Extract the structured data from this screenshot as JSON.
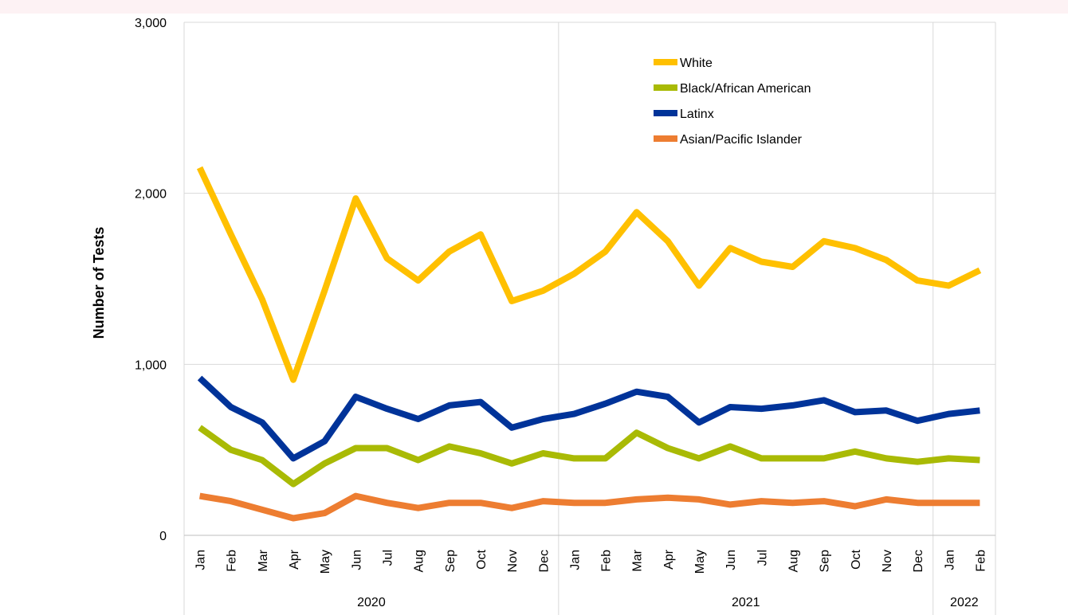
{
  "chart_data": {
    "type": "line",
    "title": "",
    "xlabel": "",
    "ylabel": "Number of Tests",
    "ylim": [
      0,
      3000
    ],
    "yticks": [
      0,
      1000,
      2000,
      3000
    ],
    "ytick_labels": [
      "0",
      "1,000",
      "2,000",
      "3,000"
    ],
    "grid": true,
    "legend_position": "top-right",
    "categories": [
      "Jan",
      "Feb",
      "Mar",
      "Apr",
      "May",
      "Jun",
      "Jul",
      "Aug",
      "Sep",
      "Oct",
      "Nov",
      "Dec",
      "Jan",
      "Feb",
      "Mar",
      "Apr",
      "May",
      "Jun",
      "Jul",
      "Aug",
      "Sep",
      "Oct",
      "Nov",
      "Dec",
      "Jan",
      "Feb"
    ],
    "year_groups": [
      {
        "label": "2020",
        "start": 0,
        "end": 11
      },
      {
        "label": "2021",
        "start": 12,
        "end": 23
      },
      {
        "label": "2022",
        "start": 24,
        "end": 25
      }
    ],
    "series": [
      {
        "name": "White",
        "color": "#FFC000",
        "values": [
          2150,
          1760,
          1380,
          910,
          1430,
          1970,
          1620,
          1490,
          1660,
          1760,
          1370,
          1430,
          1530,
          1660,
          1890,
          1720,
          1460,
          1680,
          1600,
          1570,
          1720,
          1680,
          1610,
          1490,
          1460,
          1550
        ]
      },
      {
        "name": "Black/African American",
        "color": "#A9BA05",
        "values": [
          630,
          500,
          440,
          300,
          420,
          510,
          510,
          440,
          520,
          480,
          420,
          480,
          450,
          450,
          600,
          510,
          450,
          520,
          450,
          450,
          450,
          490,
          450,
          430,
          450,
          440
        ]
      },
      {
        "name": "Latinx",
        "color": "#003399",
        "values": [
          920,
          750,
          660,
          450,
          550,
          810,
          740,
          680,
          760,
          780,
          630,
          680,
          710,
          770,
          840,
          810,
          660,
          750,
          740,
          760,
          790,
          720,
          730,
          670,
          710,
          730
        ]
      },
      {
        "name": "Asian/Pacific Islander",
        "color": "#ED7D31",
        "values": [
          230,
          200,
          150,
          100,
          130,
          230,
          190,
          160,
          190,
          190,
          160,
          200,
          190,
          190,
          210,
          220,
          210,
          180,
          200,
          190,
          200,
          170,
          210,
          190,
          190,
          190
        ]
      }
    ]
  }
}
